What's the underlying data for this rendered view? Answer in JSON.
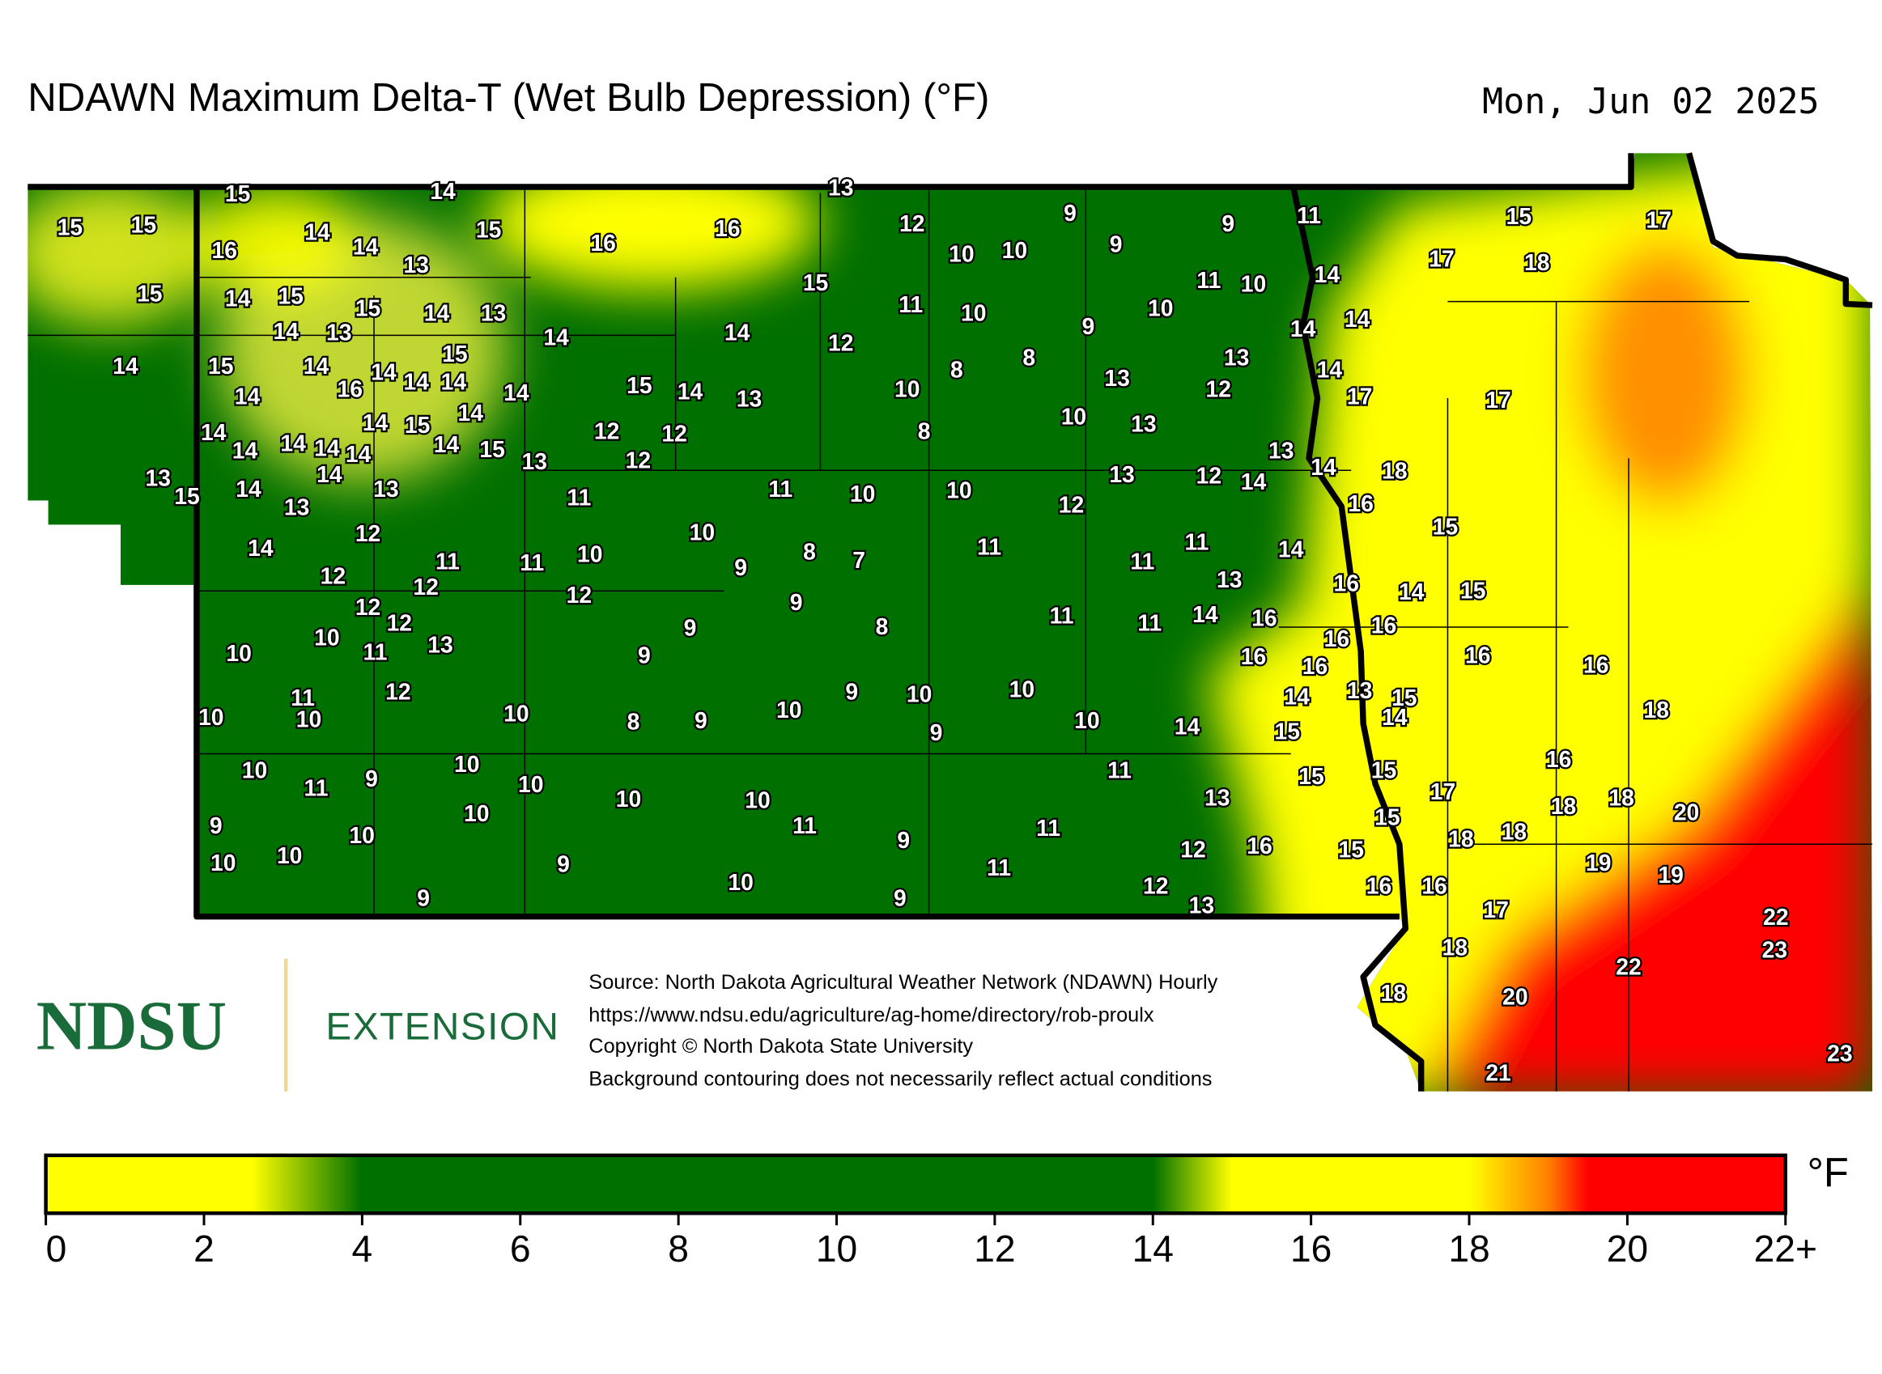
{
  "header": {
    "title": "NDAWN Maximum Delta-T (Wet Bulb Depression) (°F)",
    "date": "Mon, Jun 02 2025"
  },
  "logo": {
    "name": "NDSU",
    "unit": "EXTENSION"
  },
  "credits": {
    "lines": [
      "Source: North Dakota Agricultural Weather Network (NDAWN) Hourly",
      "https://www.ndsu.edu/agriculture/ag-home/directory/rob-proulx",
      "Copyright © North Dakota State University",
      "Background contouring does not necessarily reflect actual conditions"
    ]
  },
  "legend": {
    "unit": "°F",
    "range": [
      0,
      22
    ],
    "ticks": [
      0,
      2,
      4,
      6,
      8,
      10,
      12,
      14,
      16,
      18,
      20,
      {
        "value": 22,
        "label": "22+"
      }
    ],
    "colorscale": [
      {
        "value": 0,
        "color": "#ffff00"
      },
      {
        "value": 2.6,
        "color": "#ffff00"
      },
      {
        "value": 4,
        "color": "#007000"
      },
      {
        "value": 14,
        "color": "#007000"
      },
      {
        "value": 15,
        "color": "#ffff00"
      },
      {
        "value": 18,
        "color": "#ffff00"
      },
      {
        "value": 19,
        "color": "#ff8000"
      },
      {
        "value": 19.5,
        "color": "#ff0000"
      },
      {
        "value": 22,
        "color": "#ff0000"
      }
    ]
  },
  "stations": {
    "values": [
      15,
      14,
      13,
      15,
      15,
      14,
      15,
      9,
      9,
      11,
      15,
      17,
      12,
      16,
      14,
      13,
      16,
      16,
      10,
      10,
      9,
      17,
      18,
      15,
      14,
      15,
      15,
      11,
      10,
      14,
      14,
      13,
      15,
      14,
      13,
      14,
      11,
      10,
      10,
      9,
      14,
      14,
      14,
      15,
      14,
      15,
      14,
      14,
      12,
      8,
      8,
      13,
      14,
      14,
      16,
      14,
      14,
      14,
      15,
      14,
      13,
      10,
      13,
      12,
      17,
      17,
      14,
      14,
      14,
      14,
      14,
      14,
      15,
      14,
      14,
      15,
      13,
      12,
      12,
      12,
      8,
      10,
      13,
      13,
      13,
      15,
      14,
      14,
      13,
      13,
      11,
      11,
      10,
      10,
      12,
      13,
      12,
      14,
      14,
      18,
      14,
      12,
      10,
      16,
      15,
      11,
      11,
      10,
      9,
      8,
      7,
      11,
      11,
      11,
      14,
      12,
      12,
      12,
      9,
      13,
      16,
      14,
      15,
      12,
      12,
      9,
      8,
      11,
      11,
      14,
      16,
      16,
      16,
      10,
      10,
      11,
      13,
      9,
      16,
      16,
      16,
      16,
      11,
      12,
      9,
      10,
      10,
      14,
      13,
      15,
      10,
      10,
      10,
      8,
      9,
      10,
      9,
      10,
      14,
      15,
      14,
      18,
      10,
      11,
      9,
      10,
      10,
      10,
      10,
      11,
      15,
      15,
      16,
      13,
      17,
      18,
      18,
      20,
      9,
      10,
      10,
      11,
      11,
      9,
      15,
      18,
      18,
      10,
      10,
      9,
      11,
      12,
      16,
      15,
      19,
      19,
      9,
      10,
      9,
      12,
      13,
      16,
      16,
      17,
      22,
      18,
      23,
      22,
      18,
      20,
      23,
      21
    ]
  }
}
